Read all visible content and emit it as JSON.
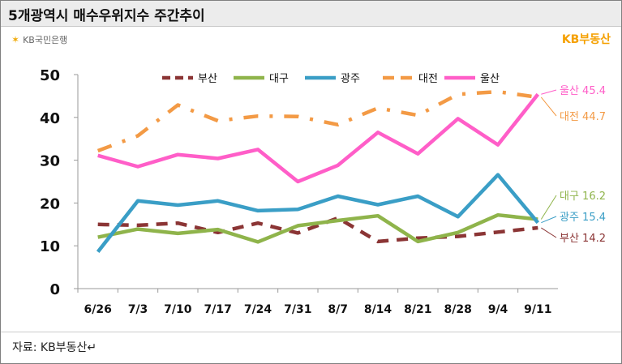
{
  "header": {
    "title": "5개광역시 매수우위지수 주간추이"
  },
  "logo": {
    "kb_text": "KB국민은행"
  },
  "brand": {
    "text": "KB부동산"
  },
  "source": {
    "text": "자료: KB부동산↵"
  },
  "chart_data": {
    "type": "line",
    "title": "5개광역시 매수우위지수 주간추이",
    "xlabel": "",
    "ylabel": "",
    "categories": [
      "6/26",
      "7/3",
      "7/10",
      "7/17",
      "7/24",
      "7/31",
      "8/7",
      "8/14",
      "8/21",
      "8/28",
      "9/4",
      "9/11"
    ],
    "ylim": [
      0,
      50
    ],
    "yticks": [
      0,
      10,
      20,
      30,
      40,
      50
    ],
    "grid": false,
    "legend_position": "top",
    "series": [
      {
        "name": "부산",
        "color": "#8b3535",
        "style": "dash",
        "values": [
          15.0,
          14.8,
          15.3,
          13.1,
          15.3,
          13.0,
          16.5,
          11.0,
          11.8,
          12.2,
          13.2,
          14.2
        ],
        "end_label": "부산 14.2"
      },
      {
        "name": "대구",
        "color": "#8fb44b",
        "style": "solid",
        "values": [
          12.0,
          13.9,
          12.9,
          13.8,
          10.9,
          14.7,
          15.9,
          17.0,
          11.0,
          13.1,
          17.2,
          16.2
        ],
        "end_label": "대구 16.2"
      },
      {
        "name": "광주",
        "color": "#3a9ec6",
        "style": "solid",
        "values": [
          8.6,
          20.5,
          19.5,
          20.5,
          18.2,
          18.5,
          21.6,
          19.6,
          21.6,
          16.8,
          26.6,
          15.4
        ],
        "end_label": "광주 15.4"
      },
      {
        "name": "대전",
        "color": "#f39a45",
        "style": "dashdot",
        "values": [
          32.2,
          35.7,
          42.9,
          39.2,
          40.3,
          40.2,
          38.3,
          42.2,
          40.5,
          45.4,
          46.0,
          44.7
        ],
        "end_label": "대전 44.7"
      },
      {
        "name": "울산",
        "color": "#ff5ec8",
        "style": "solid",
        "values": [
          31.1,
          28.5,
          31.3,
          30.4,
          32.5,
          25.0,
          28.8,
          36.5,
          31.5,
          39.7,
          33.6,
          45.4
        ],
        "end_label": "울산 45.4"
      }
    ]
  }
}
